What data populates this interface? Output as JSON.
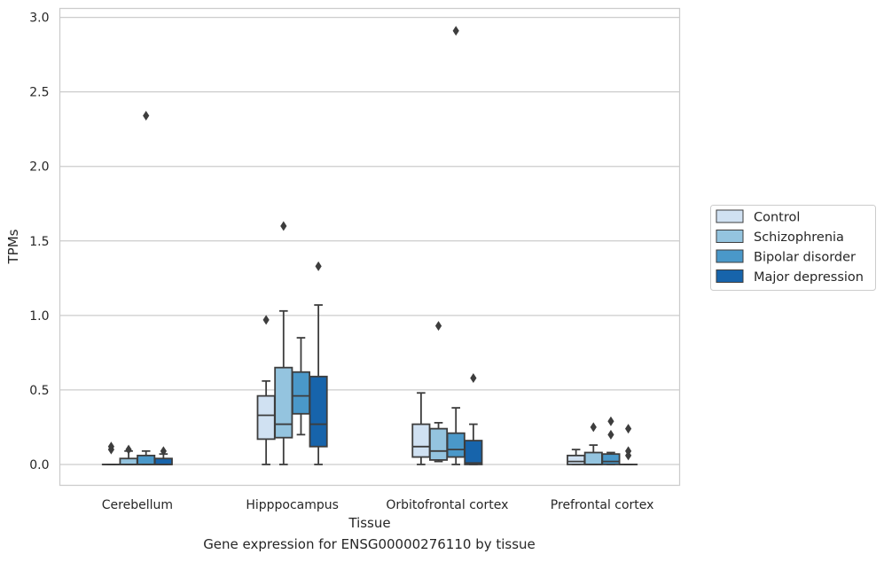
{
  "caption": "Gene expression for ENSG00000276110 by tissue",
  "chart_data": {
    "type": "box",
    "xlabel": "Tissue",
    "ylabel": "TPMs",
    "ylim": [
      -0.14,
      3.06
    ],
    "yticks": [
      "0.0",
      "0.5",
      "1.0",
      "1.5",
      "2.0",
      "2.5",
      "3.0"
    ],
    "grid": true,
    "legend_placement": "right, outside plot",
    "categories": [
      "Cerebellum",
      "Hipppocampus",
      "Orbitofrontal cortex",
      "Prefrontal cortex"
    ],
    "series": [
      {
        "name": "Control",
        "color": "#d0e1f2",
        "boxes": [
          {
            "whislo": 0.0,
            "q1": 0.0,
            "med": 0.0,
            "q3": 0.0,
            "whishi": 0.0,
            "fliers": [
              0.1,
              0.12
            ]
          },
          {
            "whislo": 0.0,
            "q1": 0.17,
            "med": 0.33,
            "q3": 0.46,
            "whishi": 0.56,
            "fliers": [
              0.97
            ]
          },
          {
            "whislo": 0.0,
            "q1": 0.05,
            "med": 0.12,
            "q3": 0.27,
            "whishi": 0.48,
            "fliers": []
          },
          {
            "whislo": 0.0,
            "q1": 0.0,
            "med": 0.02,
            "q3": 0.06,
            "whishi": 0.1,
            "fliers": []
          }
        ]
      },
      {
        "name": "Schizophrenia",
        "color": "#94c4df",
        "boxes": [
          {
            "whislo": 0.0,
            "q1": 0.0,
            "med": 0.0,
            "q3": 0.04,
            "whishi": 0.09,
            "fliers": [
              0.1
            ]
          },
          {
            "whislo": 0.0,
            "q1": 0.18,
            "med": 0.27,
            "q3": 0.65,
            "whishi": 1.03,
            "fliers": [
              1.6
            ]
          },
          {
            "whislo": 0.02,
            "q1": 0.03,
            "med": 0.09,
            "q3": 0.24,
            "whishi": 0.28,
            "fliers": [
              0.93
            ]
          },
          {
            "whislo": 0.0,
            "q1": 0.0,
            "med": 0.0,
            "q3": 0.08,
            "whishi": 0.13,
            "fliers": [
              0.25
            ]
          }
        ]
      },
      {
        "name": "Bipolar disorder",
        "color": "#4a98c9",
        "boxes": [
          {
            "whislo": 0.0,
            "q1": 0.0,
            "med": 0.0,
            "q3": 0.06,
            "whishi": 0.09,
            "fliers": [
              2.34
            ]
          },
          {
            "whislo": 0.2,
            "q1": 0.34,
            "med": 0.46,
            "q3": 0.62,
            "whishi": 0.85,
            "fliers": []
          },
          {
            "whislo": 0.0,
            "q1": 0.05,
            "med": 0.1,
            "q3": 0.21,
            "whishi": 0.38,
            "fliers": [
              2.91
            ]
          },
          {
            "whislo": 0.0,
            "q1": 0.0,
            "med": 0.02,
            "q3": 0.07,
            "whishi": 0.08,
            "fliers": [
              0.2,
              0.29
            ]
          }
        ]
      },
      {
        "name": "Major depression",
        "color": "#1764ab",
        "boxes": [
          {
            "whislo": 0.0,
            "q1": 0.0,
            "med": 0.0,
            "q3": 0.04,
            "whishi": 0.07,
            "fliers": [
              0.09
            ]
          },
          {
            "whislo": 0.0,
            "q1": 0.12,
            "med": 0.27,
            "q3": 0.59,
            "whishi": 1.07,
            "fliers": [
              1.33
            ]
          },
          {
            "whislo": 0.0,
            "q1": 0.0,
            "med": 0.01,
            "q3": 0.16,
            "whishi": 0.27,
            "fliers": [
              0.58
            ]
          },
          {
            "whislo": 0.0,
            "q1": 0.0,
            "med": 0.0,
            "q3": 0.0,
            "whishi": 0.0,
            "fliers": [
              0.06,
              0.09,
              0.24
            ]
          }
        ]
      }
    ]
  }
}
